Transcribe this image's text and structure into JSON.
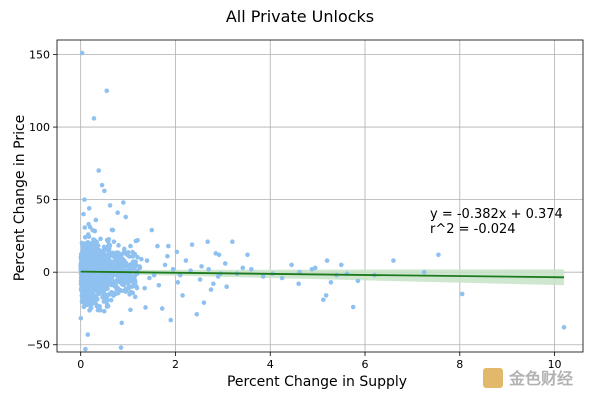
{
  "chart_data": {
    "type": "scatter",
    "title": "All Private Unlocks",
    "xlabel": "Percent Change in Supply",
    "ylabel": "Percent Change in Price",
    "xlim": [
      -0.5,
      10.6
    ],
    "ylim": [
      -55,
      160
    ],
    "xticks": [
      0,
      2,
      4,
      6,
      8,
      10
    ],
    "yticks": [
      -50,
      0,
      50,
      100,
      150
    ],
    "grid": true,
    "colors": {
      "points": "#8ec1ef",
      "fit_line": "#1e7a1e",
      "band": "#c7e3c7"
    },
    "points": [
      [
        0.03,
        151
      ],
      [
        0.55,
        125
      ],
      [
        0.28,
        106
      ],
      [
        0.38,
        70
      ],
      [
        0.45,
        60
      ],
      [
        0.5,
        56
      ],
      [
        0.62,
        46
      ],
      [
        0.78,
        41
      ],
      [
        0.9,
        48
      ],
      [
        0.18,
        44
      ],
      [
        0.32,
        36
      ],
      [
        0.68,
        29
      ],
      [
        0.95,
        38
      ],
      [
        0.2,
        31
      ],
      [
        0.08,
        50
      ],
      [
        0.06,
        40
      ],
      [
        1.5,
        29
      ],
      [
        1.05,
        18
      ],
      [
        1.2,
        22
      ],
      [
        1.62,
        18
      ],
      [
        2.35,
        19
      ],
      [
        2.68,
        21
      ],
      [
        3.2,
        21
      ],
      [
        1.83,
        11
      ],
      [
        2.03,
        14
      ],
      [
        2.85,
        13
      ],
      [
        3.52,
        12
      ],
      [
        1.4,
        8
      ],
      [
        1.25,
        3
      ],
      [
        1.55,
        -2
      ],
      [
        1.78,
        5
      ],
      [
        2.22,
        8
      ],
      [
        2.52,
        -5
      ],
      [
        2.8,
        -8
      ],
      [
        3.05,
        6
      ],
      [
        3.3,
        -1
      ],
      [
        3.6,
        2
      ],
      [
        4.05,
        -1
      ],
      [
        4.45,
        5
      ],
      [
        4.62,
        0
      ],
      [
        4.25,
        -4
      ],
      [
        4.88,
        2
      ],
      [
        5.2,
        8
      ],
      [
        5.28,
        -7
      ],
      [
        5.5,
        5
      ],
      [
        5.62,
        -1
      ],
      [
        5.75,
        -24
      ],
      [
        5.85,
        -6
      ],
      [
        5.18,
        -16
      ],
      [
        5.12,
        -19
      ],
      [
        4.6,
        -8
      ],
      [
        3.85,
        -3
      ],
      [
        4.95,
        3
      ],
      [
        6.6,
        8
      ],
      [
        7.25,
        0
      ],
      [
        7.55,
        12
      ],
      [
        8.05,
        -15
      ],
      [
        10.2,
        -38
      ],
      [
        6.2,
        -2
      ],
      [
        5.4,
        -2
      ],
      [
        1.9,
        -33
      ],
      [
        1.72,
        -25
      ],
      [
        0.85,
        -52
      ],
      [
        0.1,
        -53
      ],
      [
        0.15,
        -43
      ],
      [
        1.05,
        -26
      ],
      [
        2.45,
        -29
      ],
      [
        2.15,
        -16
      ],
      [
        2.6,
        -21
      ],
      [
        1.35,
        -11
      ],
      [
        1.15,
        -17
      ],
      [
        1.65,
        -9
      ],
      [
        2.05,
        -7
      ],
      [
        2.75,
        -12
      ],
      [
        2.9,
        -3
      ],
      [
        3.08,
        -10
      ],
      [
        2.32,
        1
      ],
      [
        2.55,
        4
      ],
      [
        2.7,
        2
      ],
      [
        2.95,
        -1
      ],
      [
        1.95,
        2
      ],
      [
        2.1,
        -2
      ],
      [
        1.45,
        -4
      ],
      [
        1.28,
        9
      ],
      [
        1.1,
        6
      ],
      [
        1.0,
        12
      ],
      [
        0.92,
        16
      ],
      [
        0.95,
        -12
      ],
      [
        1.08,
        -10
      ],
      [
        1.85,
        18
      ],
      [
        2.92,
        12
      ],
      [
        3.42,
        3
      ],
      [
        0.7,
        21
      ],
      [
        0.6,
        14
      ],
      [
        0.35,
        18
      ],
      [
        0.42,
        -5
      ]
    ],
    "fit": {
      "slope": -0.382,
      "intercept": 0.374,
      "x_range": [
        0,
        10.2
      ]
    },
    "annotations": [
      "y = -0.382x + 0.374",
      "r^2 = -0.024"
    ]
  },
  "watermark": {
    "text": "金色财经"
  }
}
